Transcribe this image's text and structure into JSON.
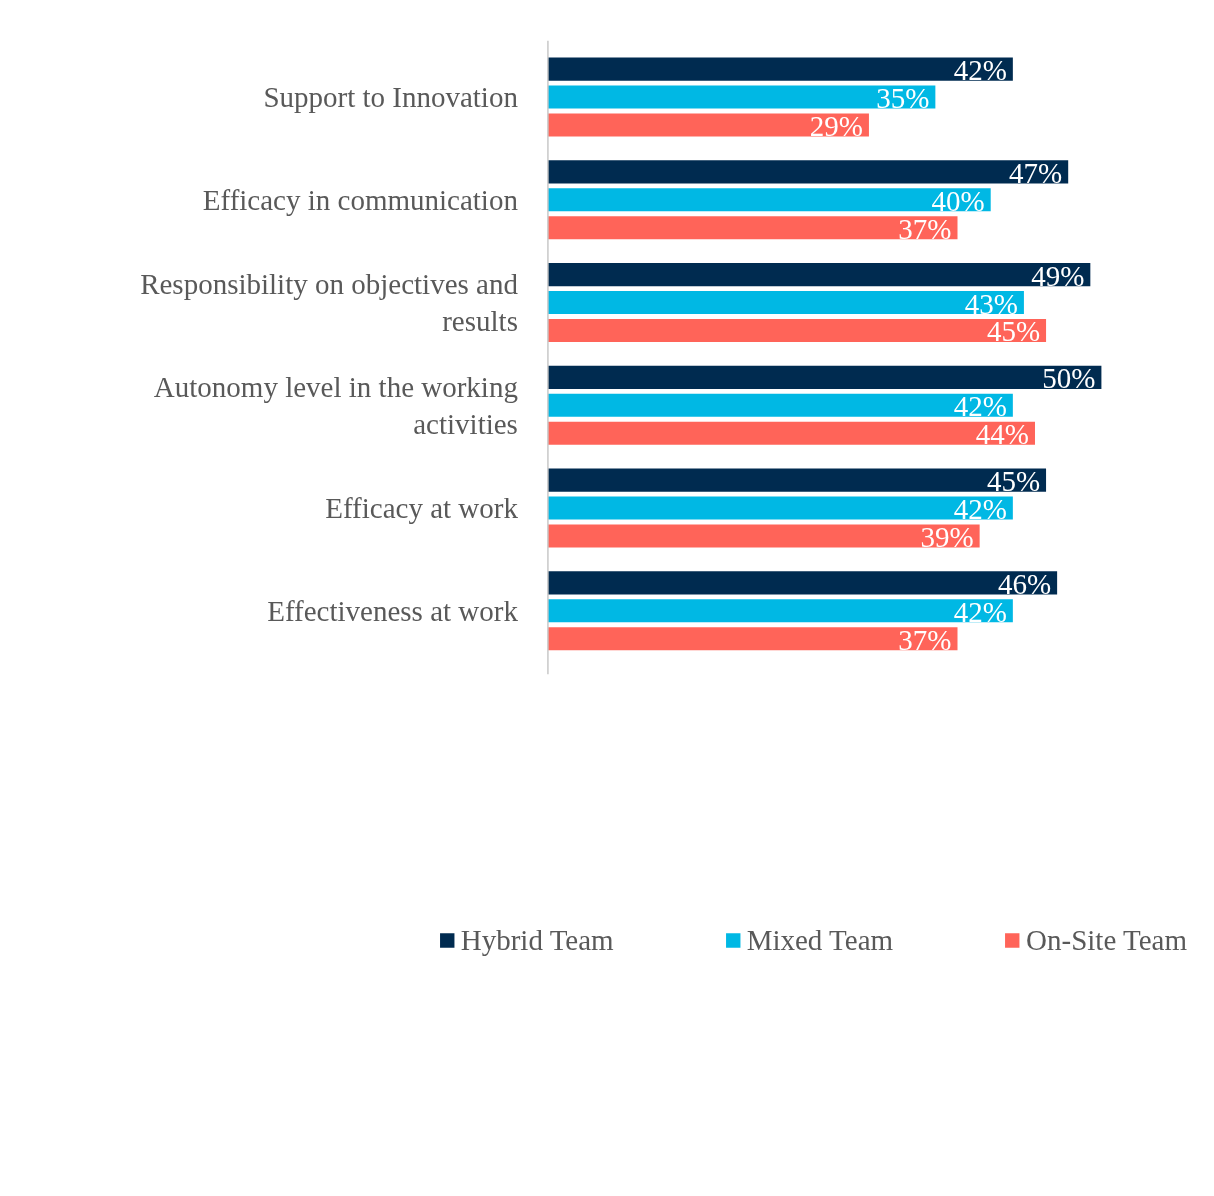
{
  "chart_data": {
    "type": "bar",
    "orientation": "horizontal",
    "categories": [
      "Support to Innovation",
      "Efficacy in communication",
      "Responsibility on objectives and results",
      "Autonomy level in the working activities",
      "Efficacy at work",
      "Effectiveness at work"
    ],
    "series": [
      {
        "name": "Hybrid Team",
        "color": "#002b50",
        "values": [
          42,
          47,
          49,
          50,
          45,
          46
        ],
        "value_labels": [
          "42%",
          "47%",
          "49%",
          "50%",
          "45%",
          "46%"
        ]
      },
      {
        "name": "Mixed Team",
        "color": "#00b8e4",
        "values": [
          35,
          40,
          43,
          42,
          42,
          42
        ],
        "value_labels": [
          "35%",
          "40%",
          "43%",
          "42%",
          "42%",
          "42%"
        ]
      },
      {
        "name": "On-Site Team",
        "color": "#ff6459",
        "values": [
          29,
          37,
          45,
          44,
          39,
          37
        ],
        "value_labels": [
          "29%",
          "37%",
          "45%",
          "44%",
          "39%",
          "37%"
        ]
      }
    ],
    "legend": "bottom"
  }
}
